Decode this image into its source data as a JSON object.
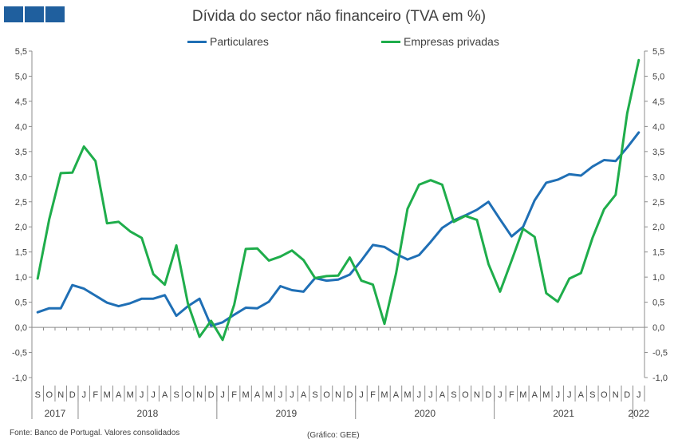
{
  "logo": {
    "name": "gee-logo"
  },
  "title": "Dívida do sector não financeiro (TVA em %)",
  "footer": {
    "source": "Fonte: Banco de Portugal. Valores consolidados",
    "credit": "(Gráfico: GEE)"
  },
  "chart_data": {
    "type": "line",
    "title": "Dívida do sector não financeiro (TVA em %)",
    "xlabel": "",
    "ylabel": "",
    "ylim": [
      -1.0,
      5.5
    ],
    "yticks": [
      "-1,0",
      "-0,5",
      "0,0",
      "0,5",
      "1,0",
      "1,5",
      "2,0",
      "2,5",
      "3,0",
      "3,5",
      "4,0",
      "4,5",
      "5,0",
      "5,5"
    ],
    "y2ticks": [
      "-1,0",
      "-0,5",
      "0,0",
      "0,5",
      "1,0",
      "1,5",
      "2,0",
      "2,5",
      "3,0",
      "3,5",
      "4,0",
      "4,5",
      "5,0",
      "5,5"
    ],
    "grid": false,
    "legend_position": "top",
    "categories": [
      "S",
      "O",
      "N",
      "D",
      "J",
      "F",
      "M",
      "A",
      "M",
      "J",
      "J",
      "A",
      "S",
      "O",
      "N",
      "D",
      "J",
      "F",
      "M",
      "A",
      "M",
      "J",
      "J",
      "A",
      "S",
      "O",
      "N",
      "D",
      "J",
      "F",
      "M",
      "A",
      "M",
      "J",
      "J",
      "A",
      "S",
      "O",
      "N",
      "D",
      "J",
      "F",
      "M",
      "A",
      "M",
      "J",
      "J",
      "A",
      "S",
      "O",
      "N",
      "D",
      "J"
    ],
    "years": [
      {
        "label": "2017",
        "start": 0,
        "end": 3
      },
      {
        "label": "2018",
        "start": 4,
        "end": 15
      },
      {
        "label": "2019",
        "start": 16,
        "end": 27
      },
      {
        "label": "2020",
        "start": 28,
        "end": 39
      },
      {
        "label": "2021",
        "start": 40,
        "end": 51
      },
      {
        "label": "2022",
        "start": 52,
        "end": 52
      }
    ],
    "series": [
      {
        "name": "Particulares",
        "color": "#1f6fb5",
        "values": [
          0.3,
          0.38,
          0.38,
          0.84,
          0.77,
          0.63,
          0.49,
          0.42,
          0.48,
          0.57,
          0.57,
          0.64,
          0.23,
          0.42,
          0.57,
          0.03,
          0.1,
          0.25,
          0.39,
          0.38,
          0.51,
          0.82,
          0.74,
          0.71,
          0.98,
          0.93,
          0.95,
          1.05,
          1.33,
          1.64,
          1.6,
          1.46,
          1.35,
          1.44,
          1.7,
          1.98,
          2.13,
          2.23,
          2.34,
          2.5,
          2.15,
          1.81,
          2.0,
          2.53,
          2.88,
          2.94,
          3.05,
          3.02,
          3.2,
          3.33,
          3.31,
          3.58,
          3.88
        ]
      },
      {
        "name": "Empresas privadas",
        "color": "#1fad4b",
        "values": [
          0.97,
          2.15,
          3.07,
          3.08,
          3.6,
          3.31,
          2.07,
          2.1,
          1.91,
          1.78,
          1.06,
          0.85,
          1.63,
          0.47,
          -0.19,
          0.13,
          -0.25,
          0.45,
          1.56,
          1.57,
          1.33,
          1.41,
          1.53,
          1.34,
          0.98,
          1.02,
          1.03,
          1.39,
          0.93,
          0.85,
          0.07,
          1.07,
          2.36,
          2.84,
          2.93,
          2.84,
          2.1,
          2.22,
          2.14,
          1.26,
          0.71,
          1.33,
          1.96,
          1.8,
          0.68,
          0.51,
          0.97,
          1.08,
          1.78,
          2.35,
          2.64,
          4.26,
          5.32
        ]
      }
    ]
  }
}
